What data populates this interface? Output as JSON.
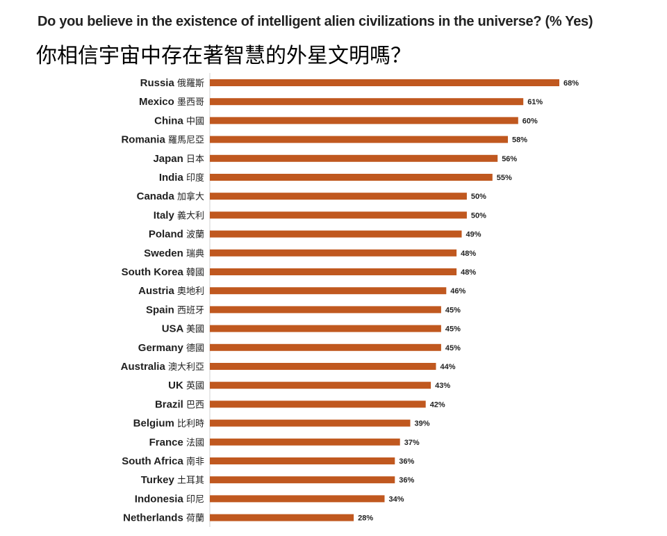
{
  "chart_data": {
    "type": "bar",
    "orientation": "horizontal",
    "title": "Do you believe in the existence of intelligent alien civilizations in the universe? (% Yes)",
    "subtitle": "你相信宇宙中存在著智慧的外星文明嗎？",
    "categories": [
      {
        "en": "Russia",
        "zh": "俄羅斯"
      },
      {
        "en": "Mexico",
        "zh": "墨西哥"
      },
      {
        "en": "China",
        "zh": "中國"
      },
      {
        "en": "Romania",
        "zh": "羅馬尼亞"
      },
      {
        "en": "Japan",
        "zh": "日本"
      },
      {
        "en": "India",
        "zh": "印度"
      },
      {
        "en": "Canada",
        "zh": "加拿大"
      },
      {
        "en": "Italy",
        "zh": "義大利"
      },
      {
        "en": "Poland",
        "zh": "波蘭"
      },
      {
        "en": "Sweden",
        "zh": "瑞典"
      },
      {
        "en": "South Korea",
        "zh": "韓國"
      },
      {
        "en": "Austria",
        "zh": "奧地利"
      },
      {
        "en": "Spain",
        "zh": "西班牙"
      },
      {
        "en": "USA",
        "zh": "美國"
      },
      {
        "en": "Germany",
        "zh": "德國"
      },
      {
        "en": "Australia",
        "zh": "澳大利亞"
      },
      {
        "en": "UK",
        "zh": "英國"
      },
      {
        "en": "Brazil",
        "zh": "巴西"
      },
      {
        "en": "Belgium",
        "zh": "比利時"
      },
      {
        "en": "France",
        "zh": "法國"
      },
      {
        "en": "South Africa",
        "zh": "南非"
      },
      {
        "en": "Turkey",
        "zh": "土耳其"
      },
      {
        "en": "Indonesia",
        "zh": "印尼"
      },
      {
        "en": "Netherlands",
        "zh": "荷蘭"
      }
    ],
    "values": [
      68,
      61,
      60,
      58,
      56,
      55,
      50,
      50,
      49,
      48,
      48,
      46,
      45,
      45,
      45,
      44,
      43,
      42,
      39,
      37,
      36,
      36,
      34,
      28
    ],
    "value_labels": [
      "68%",
      "61%",
      "60%",
      "58%",
      "56%",
      "55%",
      "50%",
      "50%",
      "49%",
      "48%",
      "48%",
      "46%",
      "45%",
      "45%",
      "45%",
      "44%",
      "43%",
      "42%",
      "39%",
      "37%",
      "36%",
      "36%",
      "34%",
      "28%"
    ],
    "xlim": [
      0,
      68
    ],
    "bar_color": "#c0581f",
    "grid": false,
    "legend": "none"
  }
}
